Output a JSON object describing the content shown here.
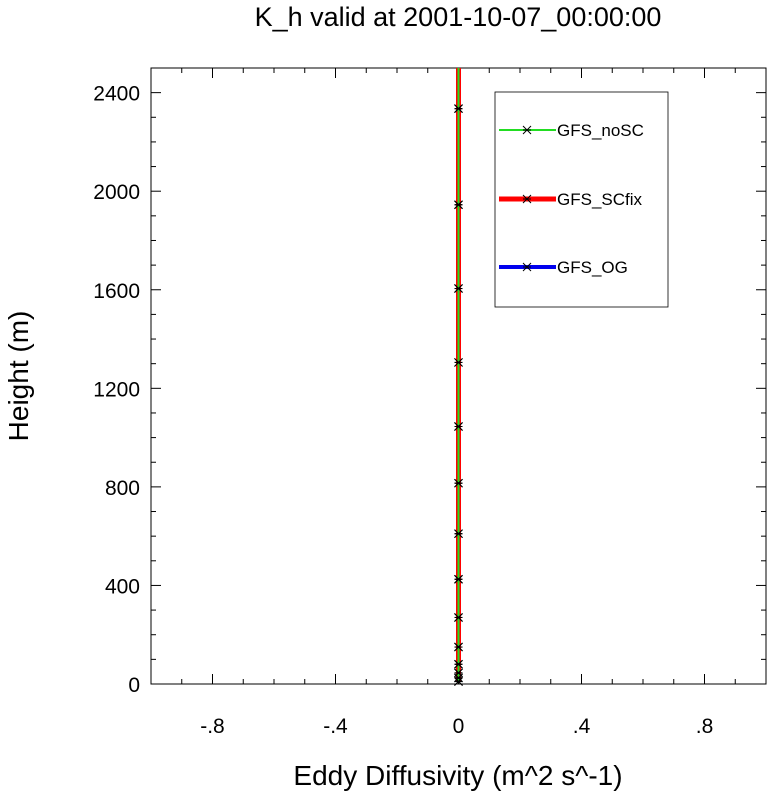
{
  "chart_data": {
    "type": "line",
    "title": "K_h valid at 2001-10-07_00:00:00",
    "xlabel": "Eddy Diffusivity (m^2 s^-1)",
    "ylabel": "Height (m)",
    "xlim": [
      -1.0,
      1.0
    ],
    "ylim": [
      0,
      2500
    ],
    "x_ticks": [
      -0.8,
      -0.4,
      0,
      0.4,
      0.8
    ],
    "x_tick_labels": [
      "-.8",
      "-.4",
      "0",
      ".4",
      ".8"
    ],
    "y_ticks": [
      0,
      400,
      800,
      1200,
      1600,
      2000,
      2400
    ],
    "y_tick_labels": [
      "0",
      "400",
      "800",
      "1200",
      "1600",
      "2000",
      "2400"
    ],
    "grid": false,
    "legend_position": "top-right",
    "heights": [
      10,
      25,
      45,
      80,
      150,
      270,
      425,
      610,
      815,
      1045,
      1305,
      1605,
      1945,
      2335,
      2500
    ],
    "series": [
      {
        "name": "GFS_noSC",
        "color": "#22dd22",
        "values": [
          0,
          0,
          0,
          0,
          0,
          0,
          0,
          0,
          0,
          0,
          0,
          0,
          0,
          0,
          0
        ]
      },
      {
        "name": "GFS_SCfix",
        "color": "#ff0000",
        "values": [
          0,
          0,
          0,
          0,
          0,
          0,
          0,
          0,
          0,
          0,
          0,
          0,
          0,
          0,
          0
        ]
      },
      {
        "name": "GFS_OG",
        "color": "#0000ee",
        "values": [
          0,
          0,
          0,
          0,
          0,
          0,
          0,
          0,
          0,
          0,
          0,
          0,
          0,
          0,
          0
        ]
      }
    ]
  }
}
